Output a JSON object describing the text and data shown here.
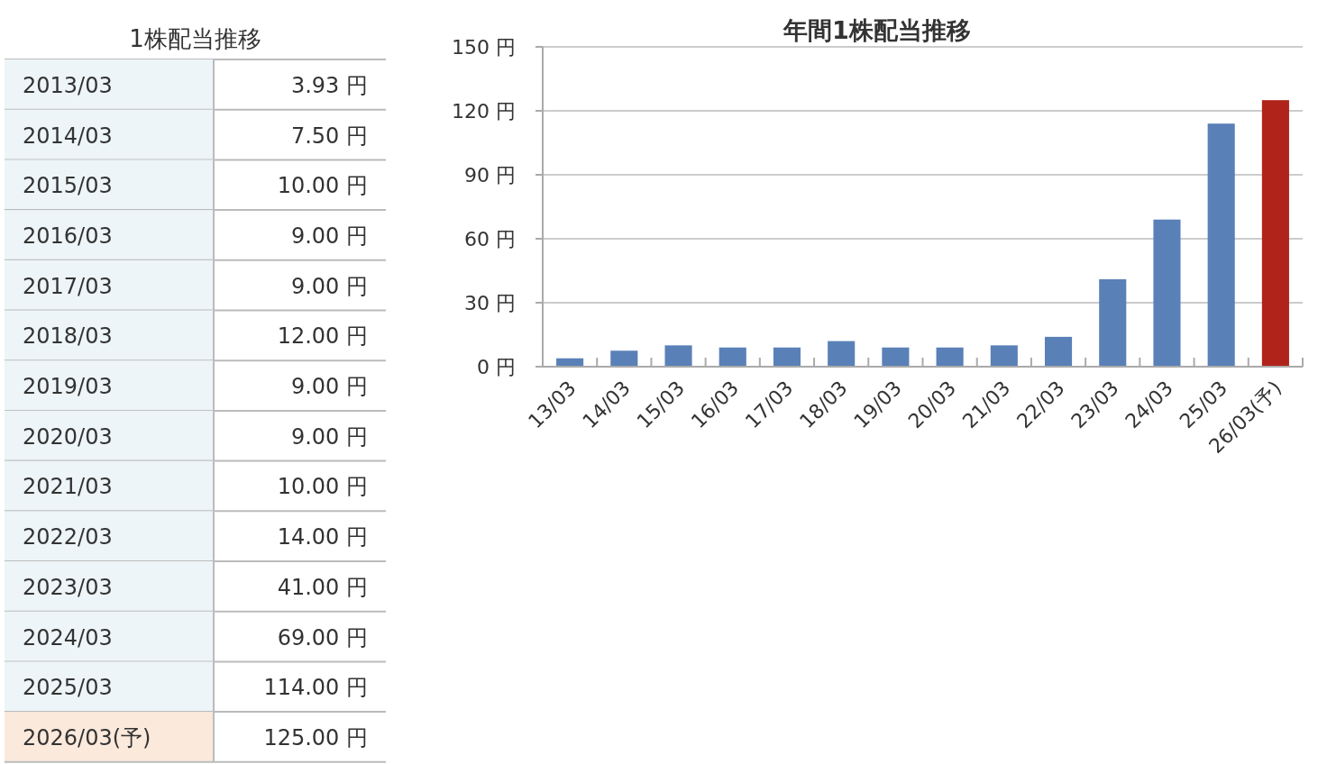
{
  "chart_data": [
    {
      "type": "other",
      "title": "1株配当推移",
      "categories": [
        "2013/03",
        "2014/03",
        "2015/03",
        "2016/03",
        "2017/03",
        "2018/03",
        "2019/03",
        "2020/03",
        "2021/03",
        "2022/03",
        "2023/03",
        "2024/03",
        "2025/03",
        "2026/03(予)"
      ],
      "value_labels": [
        "3.93 円",
        "7.50 円",
        "10.00 円",
        "9.00 円",
        "9.00 円",
        "12.00 円",
        "9.00 円",
        "9.00 円",
        "10.00 円",
        "14.00 円",
        "41.00 円",
        "69.00 円",
        "114.00 円",
        "125.00 円"
      ],
      "colors": [
        "#edf5f8",
        "#edf5f8",
        "#edf5f8",
        "#edf5f8",
        "#edf5f8",
        "#edf5f8",
        "#edf5f8",
        "#edf5f8",
        "#edf5f8",
        "#edf5f8",
        "#edf5f8",
        "#edf5f8",
        "#edf5f8",
        "#fbe9dc"
      ]
    },
    {
      "type": "bar",
      "title": "年間1株配当推移",
      "categories": [
        "13/03",
        "14/03",
        "15/03",
        "16/03",
        "17/03",
        "18/03",
        "19/03",
        "20/03",
        "21/03",
        "22/03",
        "23/03",
        "24/03",
        "25/03",
        "26/03(予)"
      ],
      "values": [
        3.93,
        7.5,
        10,
        9,
        9,
        12,
        9,
        9,
        10,
        14,
        41,
        69,
        114,
        125
      ],
      "colors": [
        "#5a80b8",
        "#5a80b8",
        "#5a80b8",
        "#5a80b8",
        "#5a80b8",
        "#5a80b8",
        "#5a80b8",
        "#5a80b8",
        "#5a80b8",
        "#5a80b8",
        "#5a80b8",
        "#5a80b8",
        "#5a80b8",
        "#b0231a"
      ],
      "ylim": [
        0,
        150
      ],
      "yticks": [
        {
          "value": 0,
          "label": "0 円"
        },
        {
          "value": 30,
          "label": "30 円"
        },
        {
          "value": 60,
          "label": "60 円"
        },
        {
          "value": 90,
          "label": "90 円"
        },
        {
          "value": 120,
          "label": "120 円"
        },
        {
          "value": 150,
          "label": "150 円"
        }
      ],
      "grid": "y"
    }
  ]
}
